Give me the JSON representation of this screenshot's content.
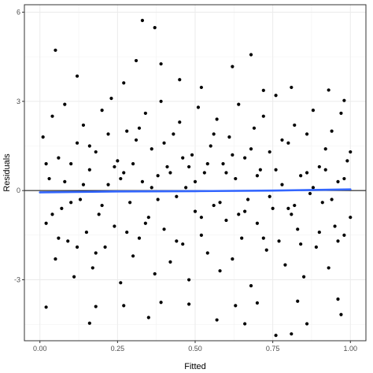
{
  "chart_data": {
    "type": "scatter",
    "title": "",
    "xlabel": "Fitted",
    "ylabel": "Residuals",
    "xlim": [
      -0.05,
      1.05
    ],
    "ylim": [
      -5.05,
      6.25
    ],
    "x_ticks": [
      0.0,
      0.25,
      0.5,
      0.75,
      1.0
    ],
    "x_tick_labels": [
      "0.00",
      "0.25",
      "0.50",
      "0.75",
      "1.00"
    ],
    "y_ticks": [
      -3,
      0,
      3,
      6
    ],
    "y_tick_labels": [
      "-3",
      "0",
      "3",
      "6"
    ],
    "grid": true,
    "reference_line": {
      "y": 0,
      "color": "#000000"
    },
    "smooth_line": {
      "color": "#3366FF",
      "points": [
        [
          0.0,
          -0.06
        ],
        [
          0.25,
          -0.03
        ],
        [
          0.5,
          -0.02
        ],
        [
          0.75,
          0.0
        ],
        [
          1.0,
          0.04
        ]
      ]
    },
    "points": [
      [
        0.33,
        5.72
      ],
      [
        0.37,
        5.48
      ],
      [
        0.05,
        4.72
      ],
      [
        0.31,
        4.37
      ],
      [
        0.39,
        4.26
      ],
      [
        0.62,
        4.17
      ],
      [
        0.68,
        4.57
      ],
      [
        0.12,
        3.85
      ],
      [
        0.27,
        3.62
      ],
      [
        0.45,
        3.73
      ],
      [
        0.52,
        3.47
      ],
      [
        0.72,
        3.37
      ],
      [
        0.81,
        3.47
      ],
      [
        0.93,
        3.38
      ],
      [
        0.98,
        3.03
      ],
      [
        0.02,
        -3.92
      ],
      [
        0.18,
        -3.9
      ],
      [
        0.27,
        -3.87
      ],
      [
        0.39,
        -3.76
      ],
      [
        0.48,
        -3.82
      ],
      [
        0.63,
        -3.87
      ],
      [
        0.7,
        -3.78
      ],
      [
        0.83,
        -3.72
      ],
      [
        0.96,
        -3.65
      ],
      [
        0.16,
        -4.46
      ],
      [
        0.66,
        -4.48
      ],
      [
        0.76,
        -4.87
      ],
      [
        0.81,
        -4.82
      ],
      [
        0.86,
        -4.48
      ],
      [
        0.97,
        -4.17
      ],
      [
        0.35,
        -4.27
      ],
      [
        0.57,
        -4.35
      ],
      [
        0.01,
        1.8
      ],
      [
        0.02,
        -1.1
      ],
      [
        0.03,
        0.4
      ],
      [
        0.04,
        2.5
      ],
      [
        0.05,
        -2.3
      ],
      [
        0.06,
        1.1
      ],
      [
        0.07,
        -0.6
      ],
      [
        0.08,
        2.9
      ],
      [
        0.09,
        -1.7
      ],
      [
        0.1,
        0.9
      ],
      [
        0.11,
        -2.9
      ],
      [
        0.12,
        1.6
      ],
      [
        0.13,
        -0.3
      ],
      [
        0.14,
        2.2
      ],
      [
        0.15,
        -1.4
      ],
      [
        0.16,
        0.7
      ],
      [
        0.17,
        -2.6
      ],
      [
        0.18,
        1.3
      ],
      [
        0.19,
        -0.8
      ],
      [
        0.2,
        2.7
      ],
      [
        0.21,
        -1.9
      ],
      [
        0.22,
        0.2
      ],
      [
        0.23,
        3.1
      ],
      [
        0.24,
        -1.2
      ],
      [
        0.25,
        1.0
      ],
      [
        0.26,
        -3.1
      ],
      [
        0.27,
        0.6
      ],
      [
        0.28,
        2.0
      ],
      [
        0.29,
        -0.4
      ],
      [
        0.3,
        -2.2
      ],
      [
        0.31,
        1.7
      ],
      [
        0.32,
        -1.6
      ],
      [
        0.33,
        0.3
      ],
      [
        0.34,
        2.6
      ],
      [
        0.35,
        -0.9
      ],
      [
        0.36,
        1.4
      ],
      [
        0.37,
        -2.8
      ],
      [
        0.38,
        0.5
      ],
      [
        0.39,
        3.0
      ],
      [
        0.4,
        -1.3
      ],
      [
        0.41,
        0.8
      ],
      [
        0.42,
        -2.4
      ],
      [
        0.43,
        1.9
      ],
      [
        0.44,
        -0.2
      ],
      [
        0.45,
        2.3
      ],
      [
        0.46,
        -1.8
      ],
      [
        0.47,
        0.1
      ],
      [
        0.48,
        -3.0
      ],
      [
        0.49,
        1.2
      ],
      [
        0.5,
        -0.7
      ],
      [
        0.51,
        2.8
      ],
      [
        0.52,
        -1.5
      ],
      [
        0.53,
        0.6
      ],
      [
        0.54,
        -2.1
      ],
      [
        0.55,
        1.5
      ],
      [
        0.56,
        -0.5
      ],
      [
        0.57,
        2.4
      ],
      [
        0.58,
        -2.7
      ],
      [
        0.59,
        0.9
      ],
      [
        0.6,
        -1.0
      ],
      [
        0.61,
        1.8
      ],
      [
        0.62,
        -2.3
      ],
      [
        0.63,
        0.4
      ],
      [
        0.64,
        2.9
      ],
      [
        0.65,
        -1.6
      ],
      [
        0.66,
        1.1
      ],
      [
        0.67,
        -0.3
      ],
      [
        0.68,
        -3.2
      ],
      [
        0.69,
        2.1
      ],
      [
        0.7,
        -1.1
      ],
      [
        0.71,
        0.7
      ],
      [
        0.72,
        2.5
      ],
      [
        0.73,
        -2.0
      ],
      [
        0.74,
        1.3
      ],
      [
        0.75,
        -0.6
      ],
      [
        0.76,
        3.2
      ],
      [
        0.77,
        -1.7
      ],
      [
        0.78,
        0.2
      ],
      [
        0.79,
        -2.5
      ],
      [
        0.8,
        1.6
      ],
      [
        0.81,
        -0.8
      ],
      [
        0.82,
        2.2
      ],
      [
        0.83,
        -1.3
      ],
      [
        0.84,
        0.5
      ],
      [
        0.85,
        -2.9
      ],
      [
        0.86,
        1.9
      ],
      [
        0.87,
        -0.1
      ],
      [
        0.88,
        2.7
      ],
      [
        0.89,
        -1.9
      ],
      [
        0.9,
        0.8
      ],
      [
        0.91,
        -0.4
      ],
      [
        0.92,
        1.4
      ],
      [
        0.93,
        -2.6
      ],
      [
        0.94,
        2.0
      ],
      [
        0.95,
        -1.2
      ],
      [
        0.96,
        0.3
      ],
      [
        0.97,
        2.6
      ],
      [
        0.98,
        -1.5
      ],
      [
        0.99,
        1.0
      ],
      [
        1.0,
        -0.9
      ],
      [
        0.02,
        0.9
      ],
      [
        0.06,
        -1.6
      ],
      [
        0.1,
        -0.4
      ],
      [
        0.14,
        0.2
      ],
      [
        0.18,
        -2.1
      ],
      [
        0.22,
        1.9
      ],
      [
        0.26,
        0.4
      ],
      [
        0.3,
        0.9
      ],
      [
        0.34,
        -1.1
      ],
      [
        0.38,
        -0.3
      ],
      [
        0.42,
        0.6
      ],
      [
        0.46,
        1.1
      ],
      [
        0.5,
        0.3
      ],
      [
        0.54,
        0.9
      ],
      [
        0.58,
        -0.4
      ],
      [
        0.62,
        1.2
      ],
      [
        0.66,
        -0.7
      ],
      [
        0.7,
        0.5
      ],
      [
        0.74,
        -0.2
      ],
      [
        0.78,
        1.7
      ],
      [
        0.82,
        -0.5
      ],
      [
        0.86,
        0.6
      ],
      [
        0.9,
        -1.4
      ],
      [
        0.94,
        -0.3
      ],
      [
        0.98,
        0.4
      ],
      [
        0.04,
        -0.8
      ],
      [
        0.08,
        0.3
      ],
      [
        0.12,
        -1.9
      ],
      [
        0.16,
        1.5
      ],
      [
        0.2,
        -0.5
      ],
      [
        0.24,
        0.8
      ],
      [
        0.28,
        -1.4
      ],
      [
        0.32,
        2.1
      ],
      [
        0.36,
        0.1
      ],
      [
        0.4,
        1.6
      ],
      [
        0.44,
        -1.7
      ],
      [
        0.48,
        0.8
      ],
      [
        0.52,
        -0.9
      ],
      [
        0.56,
        1.9
      ],
      [
        0.6,
        0.6
      ],
      [
        0.64,
        -0.8
      ],
      [
        0.68,
        1.4
      ],
      [
        0.72,
        -1.6
      ],
      [
        0.76,
        0.7
      ],
      [
        0.8,
        -0.6
      ],
      [
        0.84,
        -1.8
      ],
      [
        0.88,
        0.1
      ],
      [
        0.92,
        0.7
      ],
      [
        0.96,
        -1.7
      ],
      [
        1.0,
        1.3
      ]
    ]
  }
}
